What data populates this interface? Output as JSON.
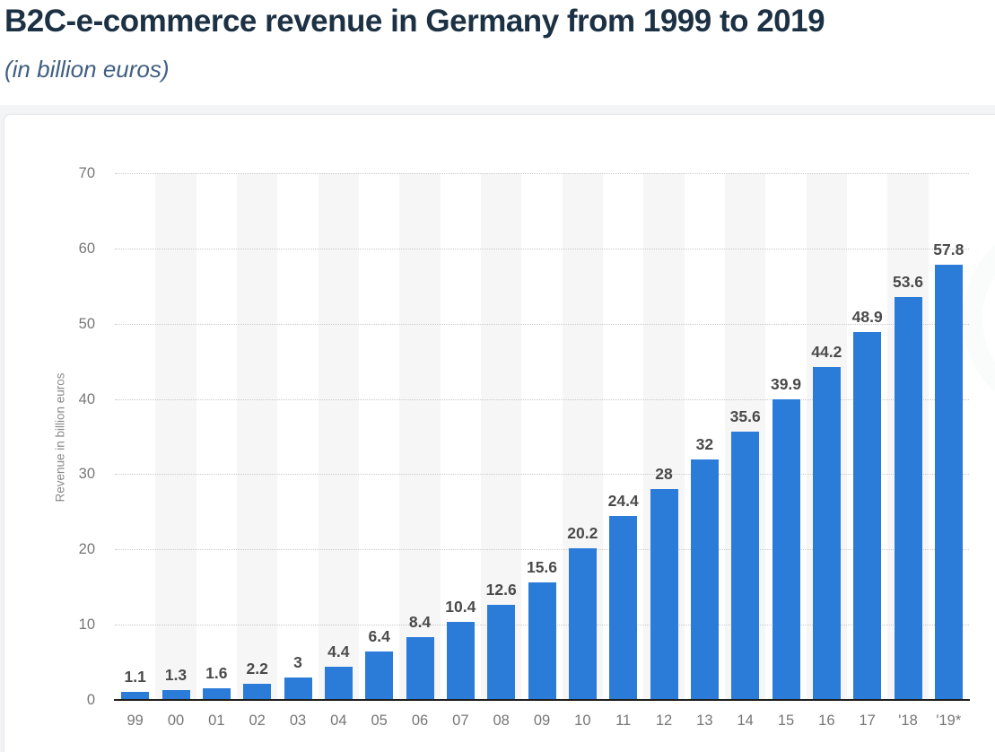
{
  "header": {
    "title": "B2C-e-commerce revenue in Germany from 1999 to 2019",
    "subtitle": "(in billion euros)"
  },
  "chart_data": {
    "type": "bar",
    "title": "B2C-e-commerce revenue in Germany from 1999 to 2019",
    "subtitle": "(in billion euros)",
    "categories": [
      "99",
      "00",
      "01",
      "02",
      "03",
      "04",
      "05",
      "06",
      "07",
      "08",
      "09",
      "10",
      "11",
      "12",
      "13",
      "14",
      "15",
      "16",
      "17",
      "'18",
      "'19*"
    ],
    "values": [
      1.1,
      1.3,
      1.6,
      2.2,
      3,
      4.4,
      6.4,
      8.4,
      10.4,
      12.6,
      15.6,
      20.2,
      24.4,
      28,
      32,
      35.6,
      39.9,
      44.2,
      48.9,
      53.6,
      57.8
    ],
    "value_labels": [
      "1.1",
      "1.3",
      "1.6",
      "2.2",
      "3",
      "4.4",
      "6.4",
      "8.4",
      "10.4",
      "12.6",
      "15.6",
      "20.2",
      "24.4",
      "28",
      "32",
      "35.6",
      "39.9",
      "44.2",
      "48.9",
      "53.6",
      "57.8"
    ],
    "xlabel": "",
    "ylabel": "Revenue in billion euros",
    "ylim": [
      0,
      70
    ],
    "yticks": [
      0,
      10,
      20,
      30,
      40,
      50,
      60,
      70
    ],
    "grid": "horizontal-dotted",
    "legend": "none",
    "plot_bands": "alternating vertical bands behind every second category starting at '00'"
  },
  "colors": {
    "title_text": "#1c3144",
    "subtitle_text": "#3f5e82",
    "bar_fill": "#2b7bd9",
    "column_band": "#f6f6f6",
    "gridline": "#c9c9c9",
    "axis_line": "#1f1f1f",
    "tick_text": "#767676",
    "value_label_text": "#4a4a4a",
    "axis_title_text": "#8a8a8a",
    "card_background": "#ffffff",
    "page_background": "#f3f4f6"
  }
}
